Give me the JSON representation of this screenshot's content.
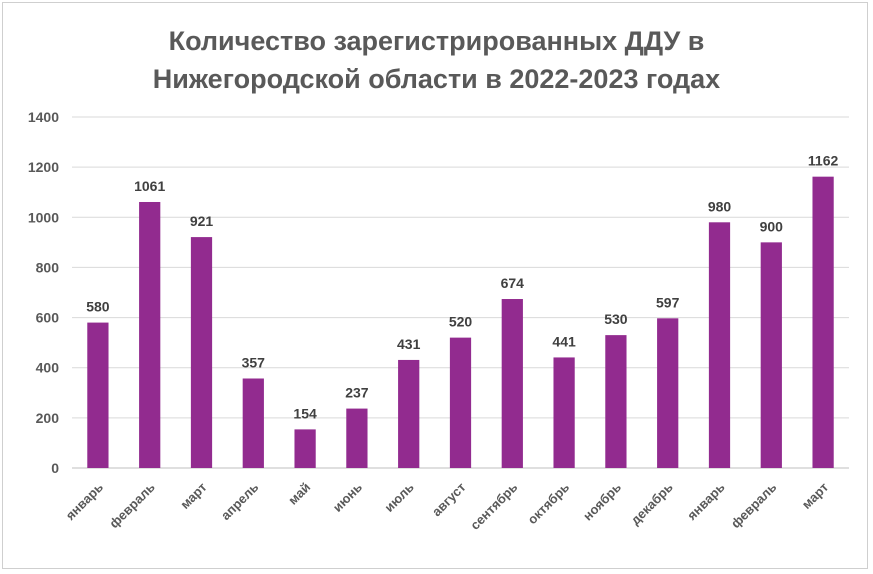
{
  "chart_data": {
    "type": "bar",
    "title_lines": [
      "Количество зарегистрированных ДДУ в",
      "Нижегородской области в 2022-2023 годах"
    ],
    "categories": [
      "январь",
      "февраль",
      "март",
      "апрель",
      "май",
      "июнь",
      "июль",
      "август",
      "сентябрь",
      "октябрь",
      "ноябрь",
      "декабрь",
      "январь",
      "февраль",
      "март"
    ],
    "values": [
      580,
      1061,
      921,
      357,
      154,
      237,
      431,
      520,
      674,
      441,
      530,
      597,
      980,
      900,
      1162
    ],
    "ylim": [
      0,
      1400
    ],
    "yticks": [
      0,
      200,
      400,
      600,
      800,
      1000,
      1200,
      1400
    ],
    "xlabel": "",
    "ylabel": "",
    "grid": true,
    "legend": "none",
    "bar_color": "#922B8F",
    "grid_color": "#d9d9d9"
  }
}
